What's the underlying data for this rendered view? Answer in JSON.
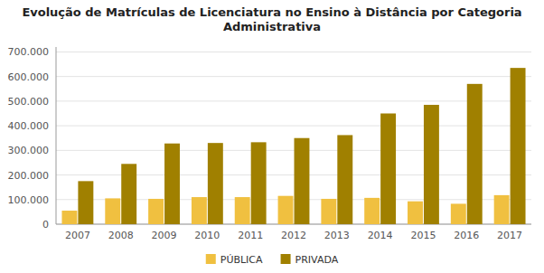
{
  "chart_data": {
    "type": "bar",
    "title": "Evolução de Matrículas de Licenciatura no Ensino à Distância por Categoria Administrativa",
    "categories": [
      "2007",
      "2008",
      "2009",
      "2010",
      "2011",
      "2012",
      "2013",
      "2014",
      "2015",
      "2016",
      "2017"
    ],
    "series": [
      {
        "name": "PÚBLICA",
        "color": "#F0C040",
        "values": [
          55000,
          105000,
          103000,
          110000,
          110000,
          115000,
          103000,
          107000,
          93000,
          83000,
          118000
        ]
      },
      {
        "name": "PRIVADA",
        "color": "#A08000",
        "values": [
          175000,
          245000,
          328000,
          330000,
          333000,
          350000,
          362000,
          450000,
          485000,
          570000,
          635000
        ]
      }
    ],
    "ylim": [
      0,
      720000
    ],
    "yticks": [
      0,
      {
        "value": 100000,
        "label": "100.000"
      },
      {
        "value": 200000,
        "label": "200.000"
      },
      {
        "value": 300000,
        "label": "300.000"
      },
      {
        "value": 400000,
        "label": "400.000"
      },
      {
        "value": 500000,
        "label": "500.000"
      },
      {
        "value": 600000,
        "label": "600.000"
      },
      {
        "value": 700000,
        "label": "700.000"
      }
    ],
    "grid": true,
    "legend": "bottom"
  }
}
